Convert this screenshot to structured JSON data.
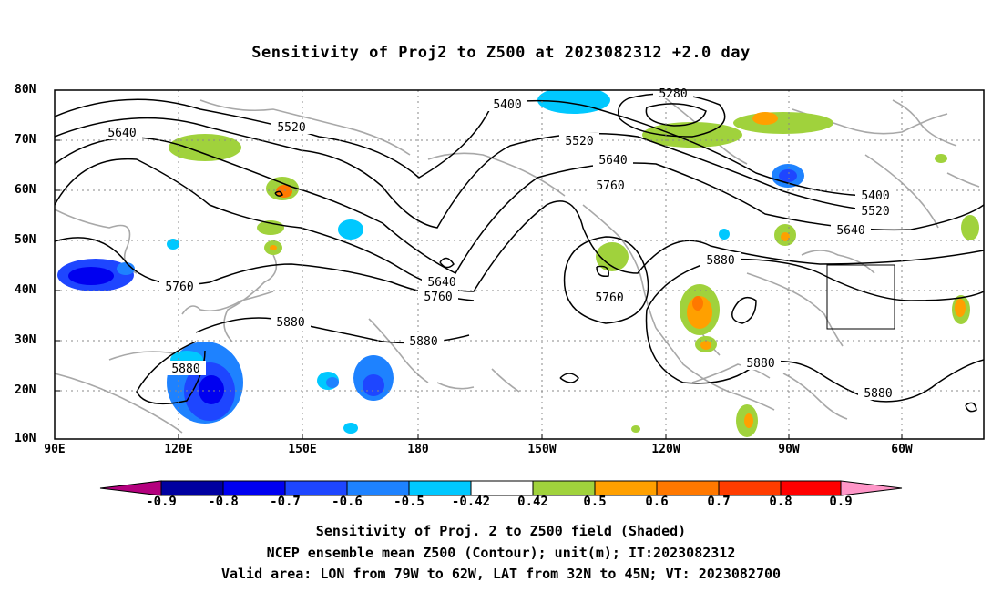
{
  "title": "Sensitivity of Proj2 to Z500 at 2023082312 +2.0 day",
  "lat_labels": [
    "80N",
    "70N",
    "60N",
    "50N",
    "40N",
    "30N",
    "20N",
    "10N"
  ],
  "lon_labels": [
    "90E",
    "120E",
    "150E",
    "180",
    "150W",
    "120W",
    "90W",
    "60W"
  ],
  "contour_labels": [
    "5400",
    "5280",
    "5640",
    "5520",
    "5520",
    "5640",
    "5760",
    "5400",
    "5520",
    "5640",
    "5880",
    "5760",
    "5640",
    "5760",
    "5760",
    "5880",
    "5880",
    "5880",
    "5880",
    "5880"
  ],
  "colorbar": {
    "labels": [
      "-0.9",
      "-0.8",
      "-0.7",
      "-0.6",
      "-0.5",
      "-0.42",
      "0.42",
      "0.5",
      "0.6",
      "0.7",
      "0.8",
      "0.9"
    ],
    "colors": [
      "#b4007e",
      "#0000a0",
      "#0000f0",
      "#1e46ff",
      "#1e82ff",
      "#00c8ff",
      "#ffffff",
      "#a0d23c",
      "#ffa000",
      "#ff7800",
      "#ff3c00",
      "#ff0000",
      "#ff96c8"
    ]
  },
  "caption": [
    "Sensitivity of Proj. 2 to Z500 field (Shaded)",
    "NCEP ensemble mean Z500 (Contour); unit(m); IT:2023082312",
    "Valid area: LON from 79W to 62W, LAT from 32N to 45N; VT: 2023082700"
  ]
}
